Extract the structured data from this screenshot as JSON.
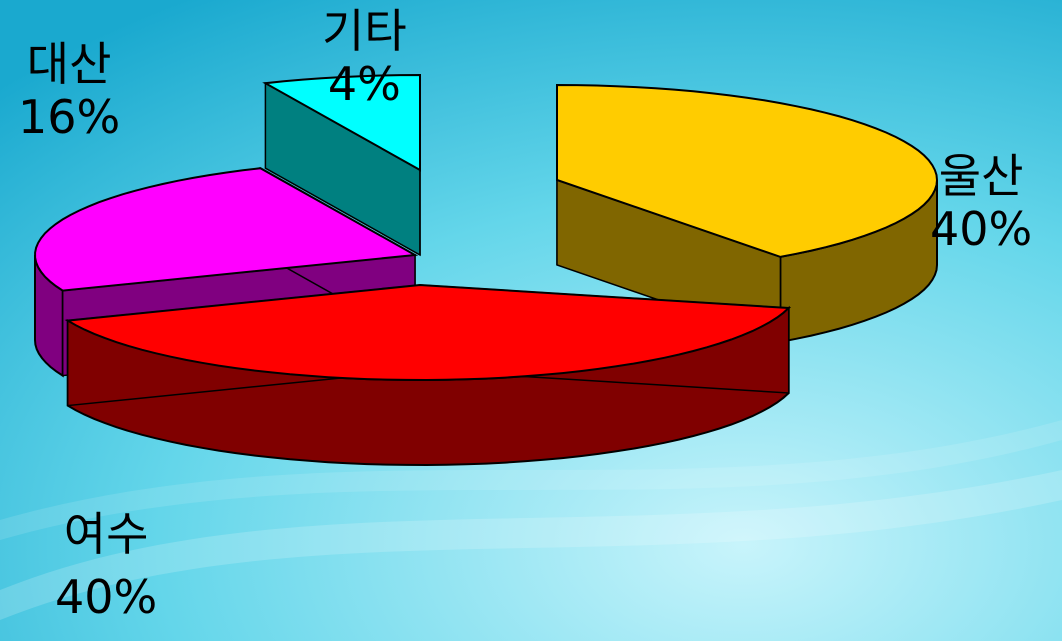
{
  "chart_data": {
    "type": "pie",
    "style": "3d-exploded",
    "slices": [
      {
        "label": "울산",
        "value": 40,
        "value_label": "40%",
        "color": "#FFCC00",
        "side_color": "#806600"
      },
      {
        "label": "여수",
        "value": 40,
        "value_label": "40%",
        "color": "#FF0000",
        "side_color": "#800000"
      },
      {
        "label": "대산",
        "value": 16,
        "value_label": "16%",
        "color": "#FF00FF",
        "side_color": "#800080"
      },
      {
        "label": "기타",
        "value": 4,
        "value_label": "4%",
        "color": "#00FFFF",
        "side_color": "#008080"
      }
    ]
  }
}
